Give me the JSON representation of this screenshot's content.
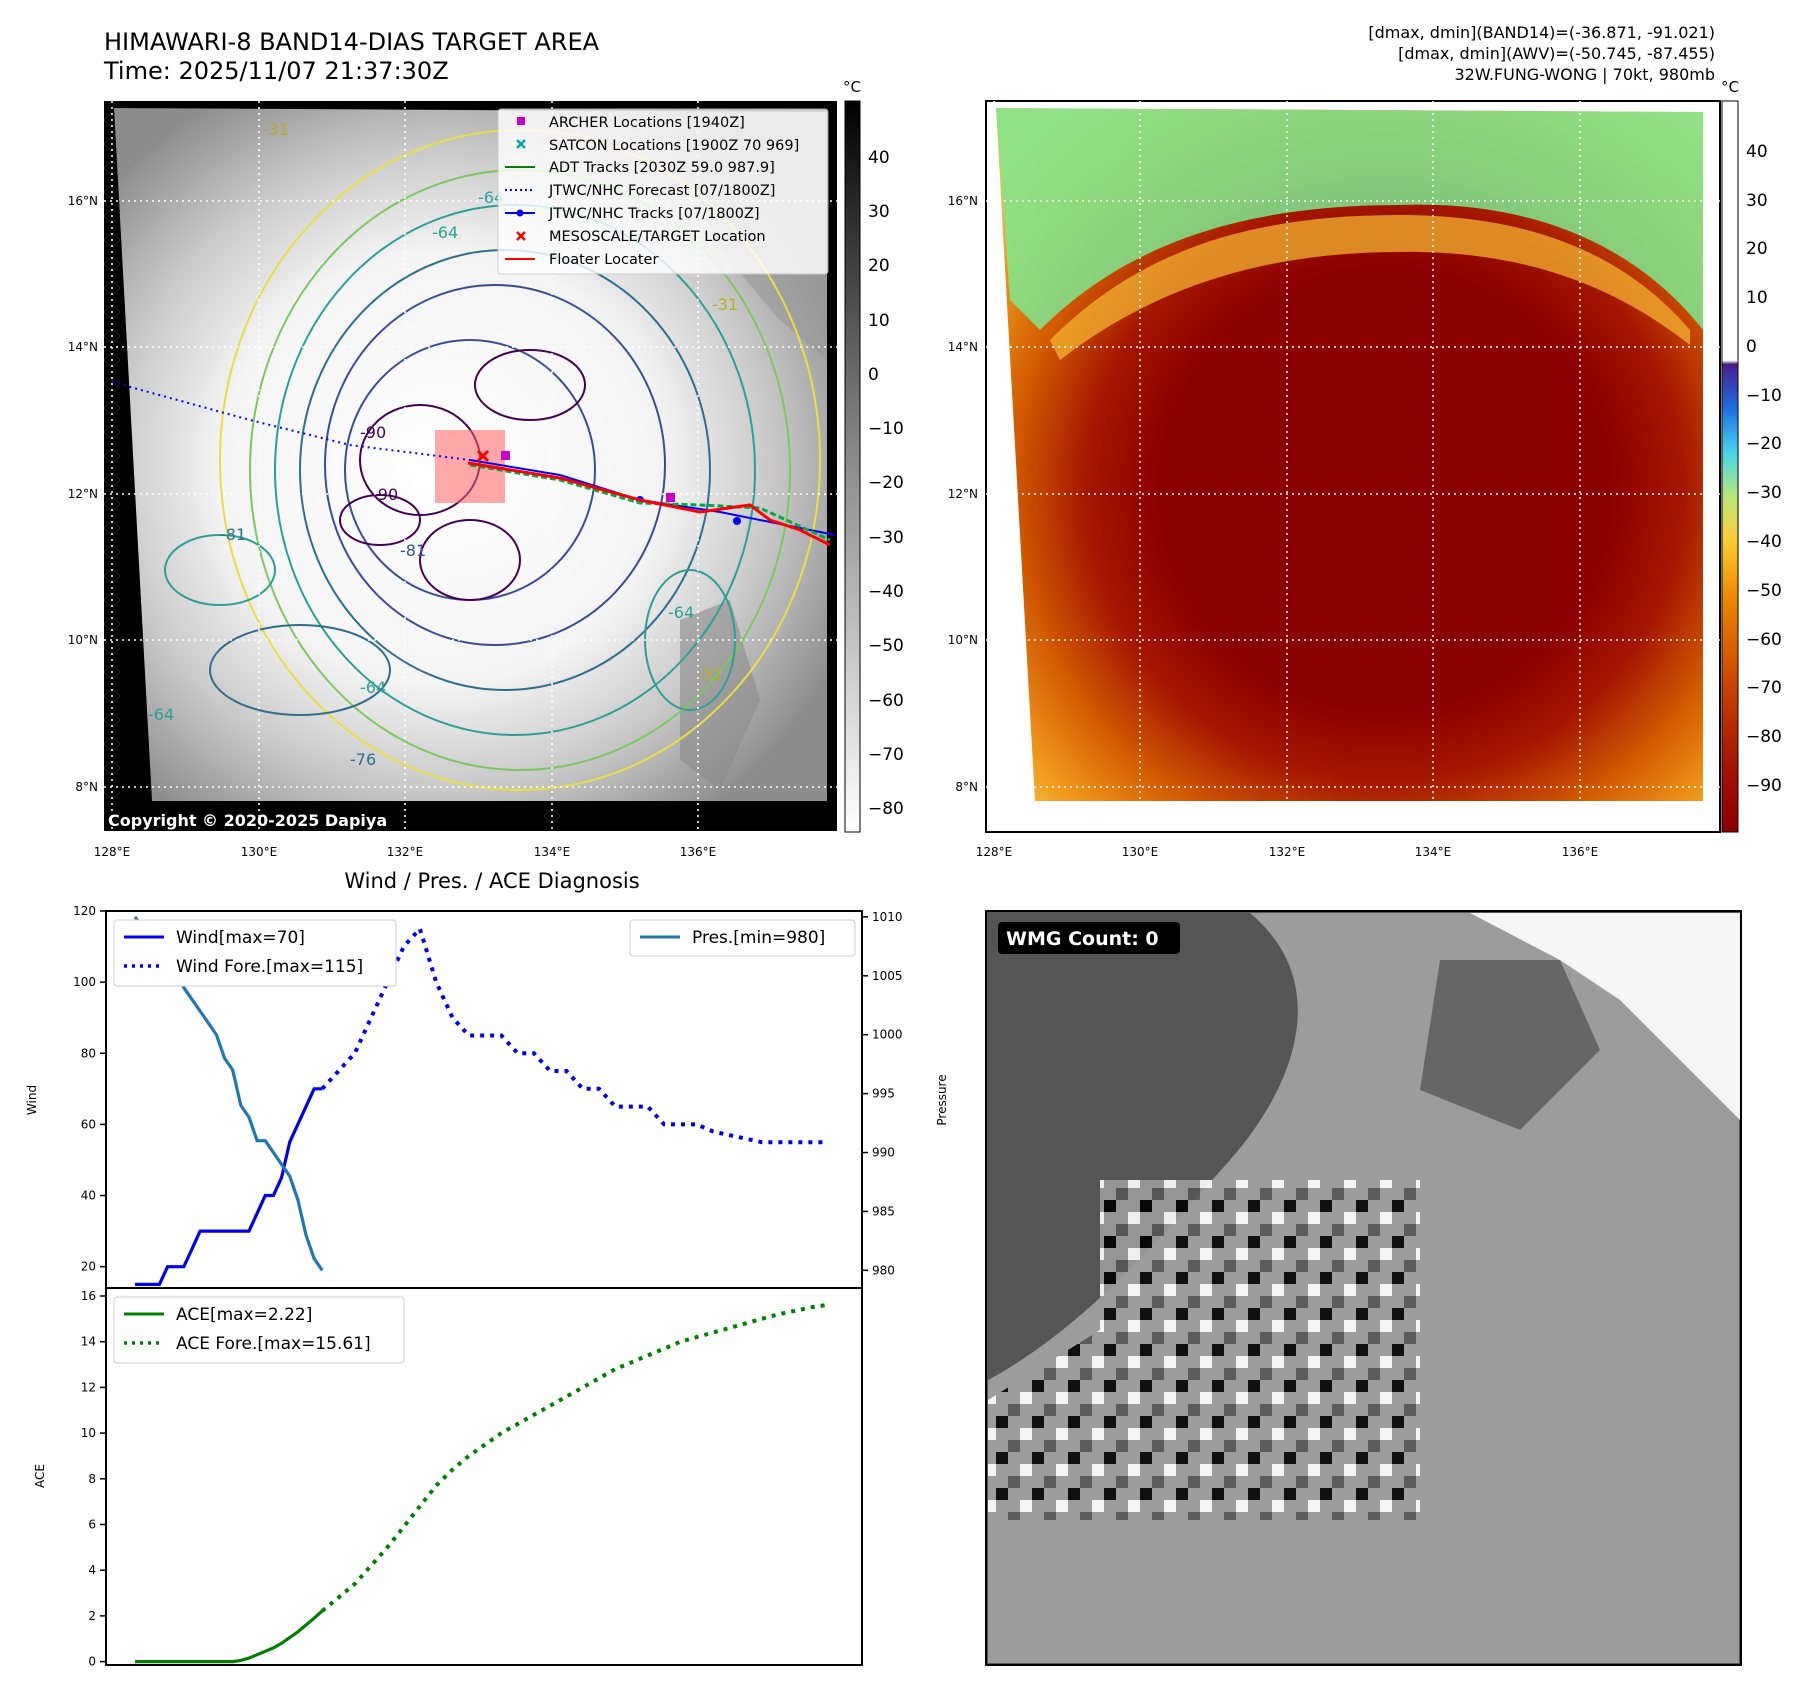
{
  "header": {
    "title_line1": "HIMAWARI-8 BAND14-DIAS TARGET AREA",
    "title_line2": "Time: 2025/11/07 21:37:30Z",
    "info_line1": "[dmax, dmin](BAND14)=(-36.871, -91.021)",
    "info_line2": "[dmax, dmin](AWV)=(-50.745, -87.455)",
    "info_line3": "32W.FUNG-WONG | 70kt, 980mb"
  },
  "map_axes": {
    "lat_labels": [
      "16°N",
      "14°N",
      "12°N",
      "10°N",
      "8°N"
    ],
    "lon_labels": [
      "128°E",
      "130°E",
      "132°E",
      "134°E",
      "136°E"
    ]
  },
  "left_map": {
    "copyright": "Copyright © 2020-2025 Dapiya",
    "legend": [
      {
        "label": "ARCHER Locations [1940Z]",
        "color": "#cc00cc",
        "marker": "square"
      },
      {
        "label": "SATCON Locations [1900Z 70 969]",
        "color": "#00aaaa",
        "marker": "x"
      },
      {
        "label": "ADT Tracks [2030Z 59.0 987.9]",
        "color": "#008000",
        "marker": "line"
      },
      {
        "label": "JTWC/NHC Forecast [07/1800Z]",
        "color": "#0000ff",
        "marker": "dotted"
      },
      {
        "label": "JTWC/NHC Tracks [07/1800Z]",
        "color": "#0000ff",
        "marker": "line-dot"
      },
      {
        "label": "MESOSCALE/TARGET Location",
        "color": "#ff0000",
        "marker": "x"
      },
      {
        "label": "Floater Locater",
        "color": "#ff0000",
        "marker": "line"
      }
    ],
    "contour_labels": [
      "-31",
      "-64",
      "-64",
      "-31",
      "-90",
      "-90",
      "-81",
      "-64",
      "-64",
      "-64",
      "-76",
      "-81",
      "-31"
    ]
  },
  "left_colorbar": {
    "unit": "°C",
    "ticks": [
      "40",
      "30",
      "20",
      "10",
      "0",
      "−10",
      "−20",
      "−30",
      "−40",
      "−50",
      "−60",
      "−70",
      "−80"
    ]
  },
  "right_colorbar": {
    "unit": "°C",
    "ticks": [
      "40",
      "30",
      "20",
      "10",
      "0",
      "−10",
      "−20",
      "−30",
      "−40",
      "−50",
      "−60",
      "−70",
      "−80",
      "−90"
    ]
  },
  "wmg": {
    "label": "WMG Count: 0"
  },
  "diagnosis": {
    "title": "Wind / Pres. / ACE Diagnosis",
    "wind_ylabel": "Wind",
    "pres_ylabel": "Pressure",
    "ace_ylabel": "ACE",
    "wind_legend": [
      "Wind[max=70]",
      "Wind Fore.[max=115]"
    ],
    "pres_legend": [
      "Pres.[min=980]"
    ],
    "ace_legend": [
      "ACE[max=2.22]",
      "ACE Fore.[max=15.61]"
    ]
  },
  "chart_data": [
    {
      "type": "line",
      "title": "Wind / Pres. / ACE Diagnosis",
      "ylabel": "Wind",
      "ylim": [
        14,
        120
      ],
      "y2label": "Pressure",
      "y2lim": [
        978.5,
        1010.5
      ],
      "y_ticks": [
        20,
        40,
        60,
        80,
        100,
        120
      ],
      "y2_ticks": [
        980,
        985,
        990,
        995,
        1000,
        1005,
        1010
      ],
      "series": [
        {
          "name": "Wind[max=70]",
          "color": "#0000ee",
          "style": "solid",
          "x": [
            0,
            1,
            2,
            3,
            4,
            5,
            6,
            7,
            8,
            9,
            10,
            11,
            12,
            13,
            14,
            15,
            16,
            17,
            18,
            19,
            20,
            21,
            22,
            23
          ],
          "values": [
            15,
            15,
            15,
            15,
            20,
            20,
            20,
            25,
            30,
            30,
            30,
            30,
            30,
            30,
            30,
            35,
            40,
            40,
            45,
            55,
            60,
            65,
            70,
            70
          ]
        },
        {
          "name": "Wind Fore.[max=115]",
          "color": "#0000ee",
          "style": "dotted",
          "x": [
            23,
            25,
            27,
            29,
            31,
            33,
            35,
            37,
            39,
            41,
            43,
            45,
            47,
            49,
            51,
            53,
            55,
            57,
            59,
            61,
            63,
            65,
            67,
            69,
            71,
            73,
            75,
            77,
            79,
            81,
            83,
            85
          ],
          "values": [
            70,
            75,
            80,
            90,
            100,
            110,
            115,
            100,
            90,
            85,
            85,
            85,
            80,
            80,
            75,
            75,
            70,
            70,
            65,
            65,
            65,
            60,
            60,
            60,
            58,
            57,
            56,
            55,
            55,
            55,
            55,
            55
          ]
        },
        {
          "name": "Pres.[min=980]",
          "color": "#1f77b4",
          "style": "solid",
          "axis": "y2",
          "x": [
            0,
            1,
            2,
            3,
            4,
            5,
            6,
            7,
            8,
            9,
            10,
            11,
            12,
            13,
            14,
            15,
            16,
            17,
            18,
            19,
            20,
            21,
            22,
            23
          ],
          "values": [
            1010,
            1009,
            1009,
            1009,
            1008,
            1006,
            1004,
            1003,
            1002,
            1001,
            1000,
            998,
            997,
            994,
            993,
            991,
            991,
            990,
            989,
            988,
            986,
            983,
            981,
            980
          ]
        }
      ]
    },
    {
      "type": "line",
      "ylabel": "ACE",
      "ylim": [
        -0.5,
        16
      ],
      "y_ticks": [
        0,
        2,
        4,
        6,
        8,
        10,
        12,
        14,
        16
      ],
      "series": [
        {
          "name": "ACE[max=2.22]",
          "color": "#008000",
          "style": "solid",
          "x": [
            0,
            2,
            4,
            6,
            8,
            10,
            12,
            13,
            14,
            15,
            16,
            17,
            18,
            19,
            20,
            21,
            22,
            23
          ],
          "values": [
            0,
            0,
            0,
            0,
            0,
            0,
            0,
            0.05,
            0.15,
            0.3,
            0.45,
            0.6,
            0.8,
            1.05,
            1.3,
            1.6,
            1.9,
            2.22
          ]
        },
        {
          "name": "ACE Fore.[max=15.61]",
          "color": "#008000",
          "style": "dotted",
          "x": [
            23,
            25,
            27,
            29,
            31,
            33,
            35,
            37,
            39,
            41,
            43,
            45,
            47,
            49,
            51,
            53,
            55,
            57,
            59,
            61,
            63,
            65,
            67,
            69,
            71,
            73,
            75,
            77,
            79,
            81,
            83,
            85
          ],
          "values": [
            2.22,
            2.8,
            3.4,
            4.2,
            5.0,
            5.9,
            6.8,
            7.7,
            8.4,
            9.0,
            9.5,
            10.0,
            10.4,
            10.8,
            11.2,
            11.6,
            12.0,
            12.4,
            12.8,
            13.1,
            13.4,
            13.7,
            14.0,
            14.2,
            14.4,
            14.6,
            14.8,
            15.0,
            15.2,
            15.35,
            15.5,
            15.61
          ]
        }
      ]
    }
  ]
}
